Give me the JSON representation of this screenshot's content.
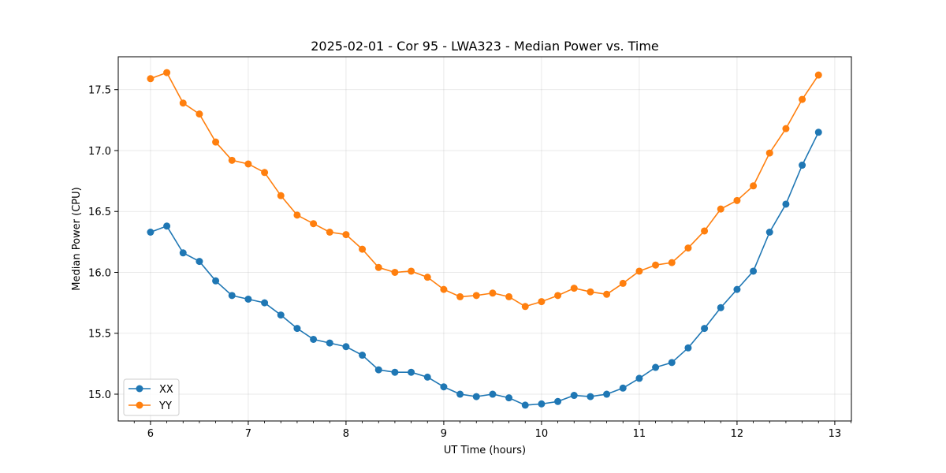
{
  "chart_data": {
    "type": "line",
    "title": "2025-02-01 - Cor 95 - LWA323 - Median Power vs. Time",
    "xlabel": "UT Time (hours)",
    "ylabel": "Median Power (CPU)",
    "xlim": [
      5.67,
      13.17
    ],
    "ylim": [
      14.78,
      17.77
    ],
    "xticks": [
      6,
      7,
      8,
      9,
      10,
      11,
      12,
      13
    ],
    "yticks": [
      15.0,
      15.5,
      16.0,
      16.5,
      17.0,
      17.5
    ],
    "grid": true,
    "legend_position": "bottom-left",
    "x": [
      6.0,
      6.1667,
      6.3333,
      6.5,
      6.6667,
      6.8333,
      7.0,
      7.1667,
      7.3333,
      7.5,
      7.6667,
      7.8333,
      8.0,
      8.1667,
      8.3333,
      8.5,
      8.6667,
      8.8333,
      9.0,
      9.1667,
      9.3333,
      9.5,
      9.6667,
      9.8333,
      10.0,
      10.1667,
      10.3333,
      10.5,
      10.6667,
      10.8333,
      11.0,
      11.1667,
      11.3333,
      11.5,
      11.6667,
      11.8333,
      12.0,
      12.1667,
      12.3333,
      12.5,
      12.6667,
      12.8333
    ],
    "series": [
      {
        "name": "XX",
        "color": "#1f77b4",
        "values": [
          16.33,
          16.38,
          16.16,
          16.09,
          15.93,
          15.81,
          15.78,
          15.75,
          15.65,
          15.54,
          15.45,
          15.42,
          15.39,
          15.32,
          15.2,
          15.18,
          15.18,
          15.14,
          15.06,
          15.0,
          14.98,
          15.0,
          14.97,
          14.91,
          14.92,
          14.94,
          14.99,
          14.98,
          15.0,
          15.05,
          15.13,
          15.22,
          15.26,
          15.38,
          15.54,
          15.71,
          15.86,
          16.01,
          16.33,
          16.56,
          16.88,
          17.15
        ]
      },
      {
        "name": "YY",
        "color": "#ff7f0e",
        "values": [
          17.59,
          17.64,
          17.39,
          17.3,
          17.07,
          16.92,
          16.89,
          16.82,
          16.63,
          16.47,
          16.4,
          16.33,
          16.31,
          16.19,
          16.04,
          16.0,
          16.01,
          15.96,
          15.86,
          15.8,
          15.81,
          15.83,
          15.8,
          15.72,
          15.76,
          15.81,
          15.87,
          15.84,
          15.82,
          15.91,
          16.01,
          16.06,
          16.08,
          16.2,
          16.34,
          16.52,
          16.59,
          16.71,
          16.98,
          17.18,
          17.42,
          17.62
        ]
      }
    ]
  }
}
